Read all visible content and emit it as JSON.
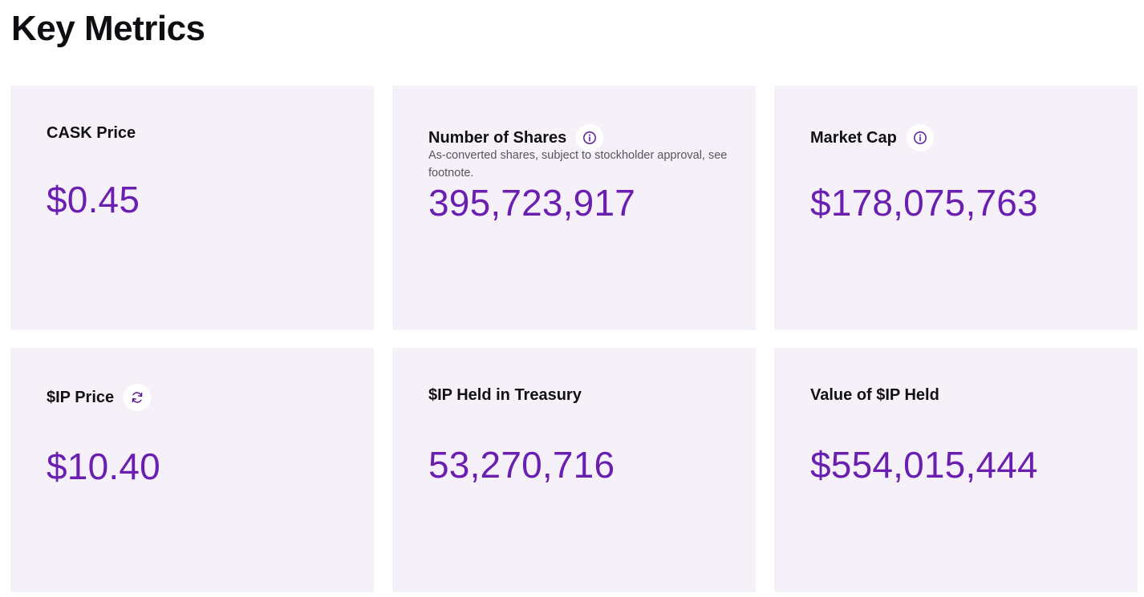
{
  "header": {
    "title": "Key Metrics"
  },
  "metrics": [
    {
      "label": "CASK Price",
      "value": "$0.45"
    },
    {
      "label": "Number of Shares",
      "subtitle": "As-converted shares, subject to stockholder approval, see footnote.",
      "value": "395,723,917",
      "icon": "info-icon"
    },
    {
      "label": "Market Cap",
      "value": "$178,075,763",
      "icon": "info-icon"
    },
    {
      "label": "$IP Price",
      "value": "$10.40",
      "icon": "refresh-icon"
    },
    {
      "label": "$IP Held in Treasury",
      "value": "53,270,716"
    },
    {
      "label": "Value of $IP Held",
      "value": "$554,015,444"
    }
  ],
  "colors": {
    "card_background": "#f6f1f9",
    "value_accent": "#6a1fb1",
    "title_text": "#0d0d12"
  }
}
